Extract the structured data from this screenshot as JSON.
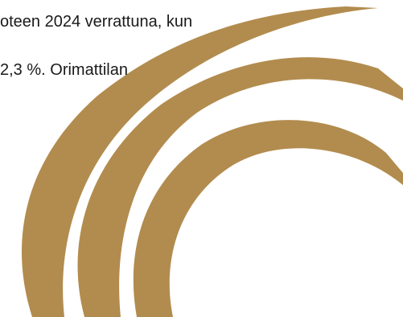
{
  "document": {
    "lines": [
      "oteen 2024 verrattuna, kun",
      "2,3 %. Orimattilan"
    ]
  },
  "colors": {
    "background": "#ffffff",
    "text": "#1a1a1a",
    "swirl_gold": "#b28c4e"
  },
  "decoration": {
    "icon": "gold-swirl-ribbon-graphic"
  }
}
